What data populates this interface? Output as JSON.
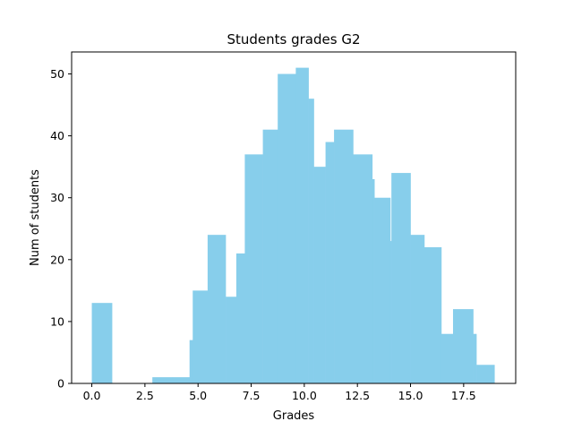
{
  "chart_data": {
    "type": "bar",
    "title": "Students grades G2",
    "xlabel": "Grades",
    "ylabel": "Num of students",
    "xlim": [
      -0.95,
      19.95
    ],
    "ylim": [
      0,
      53.55
    ],
    "xticks": [
      0,
      2.5,
      5,
      7.5,
      10,
      12.5,
      15,
      17.5
    ],
    "xtick_labels": [
      "0.0",
      "2.5",
      "5.0",
      "7.5",
      "10.0",
      "12.5",
      "15.0",
      "17.5"
    ],
    "yticks": [
      0,
      10,
      20,
      30,
      40,
      50
    ],
    "ytick_labels": [
      "0",
      "10",
      "20",
      "30",
      "40",
      "50"
    ],
    "grid": false,
    "legend": "none",
    "bar_color": "#87CEEB",
    "bins": [
      {
        "x0": 0.0,
        "x1": 0.95,
        "count": 13
      },
      {
        "x0": 0.95,
        "x1": 1.9,
        "count": 0
      },
      {
        "x0": 1.9,
        "x1": 2.85,
        "count": 0
      },
      {
        "x0": 2.85,
        "x1": 3.8,
        "count": 1
      },
      {
        "x0": 3.8,
        "x1": 4.6,
        "count": 1
      },
      {
        "x0": 4.6,
        "x1": 4.75,
        "count": 7
      },
      {
        "x0": 4.75,
        "x1": 5.45,
        "count": 15
      },
      {
        "x0": 5.45,
        "x1": 6.3,
        "count": 24
      },
      {
        "x0": 6.3,
        "x1": 6.8,
        "count": 14
      },
      {
        "x0": 6.8,
        "x1": 7.2,
        "count": 21
      },
      {
        "x0": 7.2,
        "x1": 8.05,
        "count": 37
      },
      {
        "x0": 8.05,
        "x1": 8.75,
        "count": 41
      },
      {
        "x0": 8.75,
        "x1": 9.6,
        "count": 50
      },
      {
        "x0": 9.6,
        "x1": 10.2,
        "count": 51
      },
      {
        "x0": 10.2,
        "x1": 10.45,
        "count": 46
      },
      {
        "x0": 10.45,
        "x1": 11.0,
        "count": 35
      },
      {
        "x0": 11.0,
        "x1": 11.4,
        "count": 39
      },
      {
        "x0": 11.4,
        "x1": 12.3,
        "count": 41
      },
      {
        "x0": 12.3,
        "x1": 13.2,
        "count": 37
      },
      {
        "x0": 13.2,
        "x1": 13.3,
        "count": 33
      },
      {
        "x0": 13.3,
        "x1": 14.05,
        "count": 30
      },
      {
        "x0": 14.05,
        "x1": 14.1,
        "count": 23
      },
      {
        "x0": 14.1,
        "x1": 15.0,
        "count": 34
      },
      {
        "x0": 15.0,
        "x1": 15.65,
        "count": 24
      },
      {
        "x0": 15.65,
        "x1": 16.45,
        "count": 22
      },
      {
        "x0": 16.45,
        "x1": 17.0,
        "count": 8
      },
      {
        "x0": 17.0,
        "x1": 17.95,
        "count": 12
      },
      {
        "x0": 17.95,
        "x1": 18.1,
        "count": 8
      },
      {
        "x0": 18.1,
        "x1": 18.95,
        "count": 3
      }
    ]
  }
}
